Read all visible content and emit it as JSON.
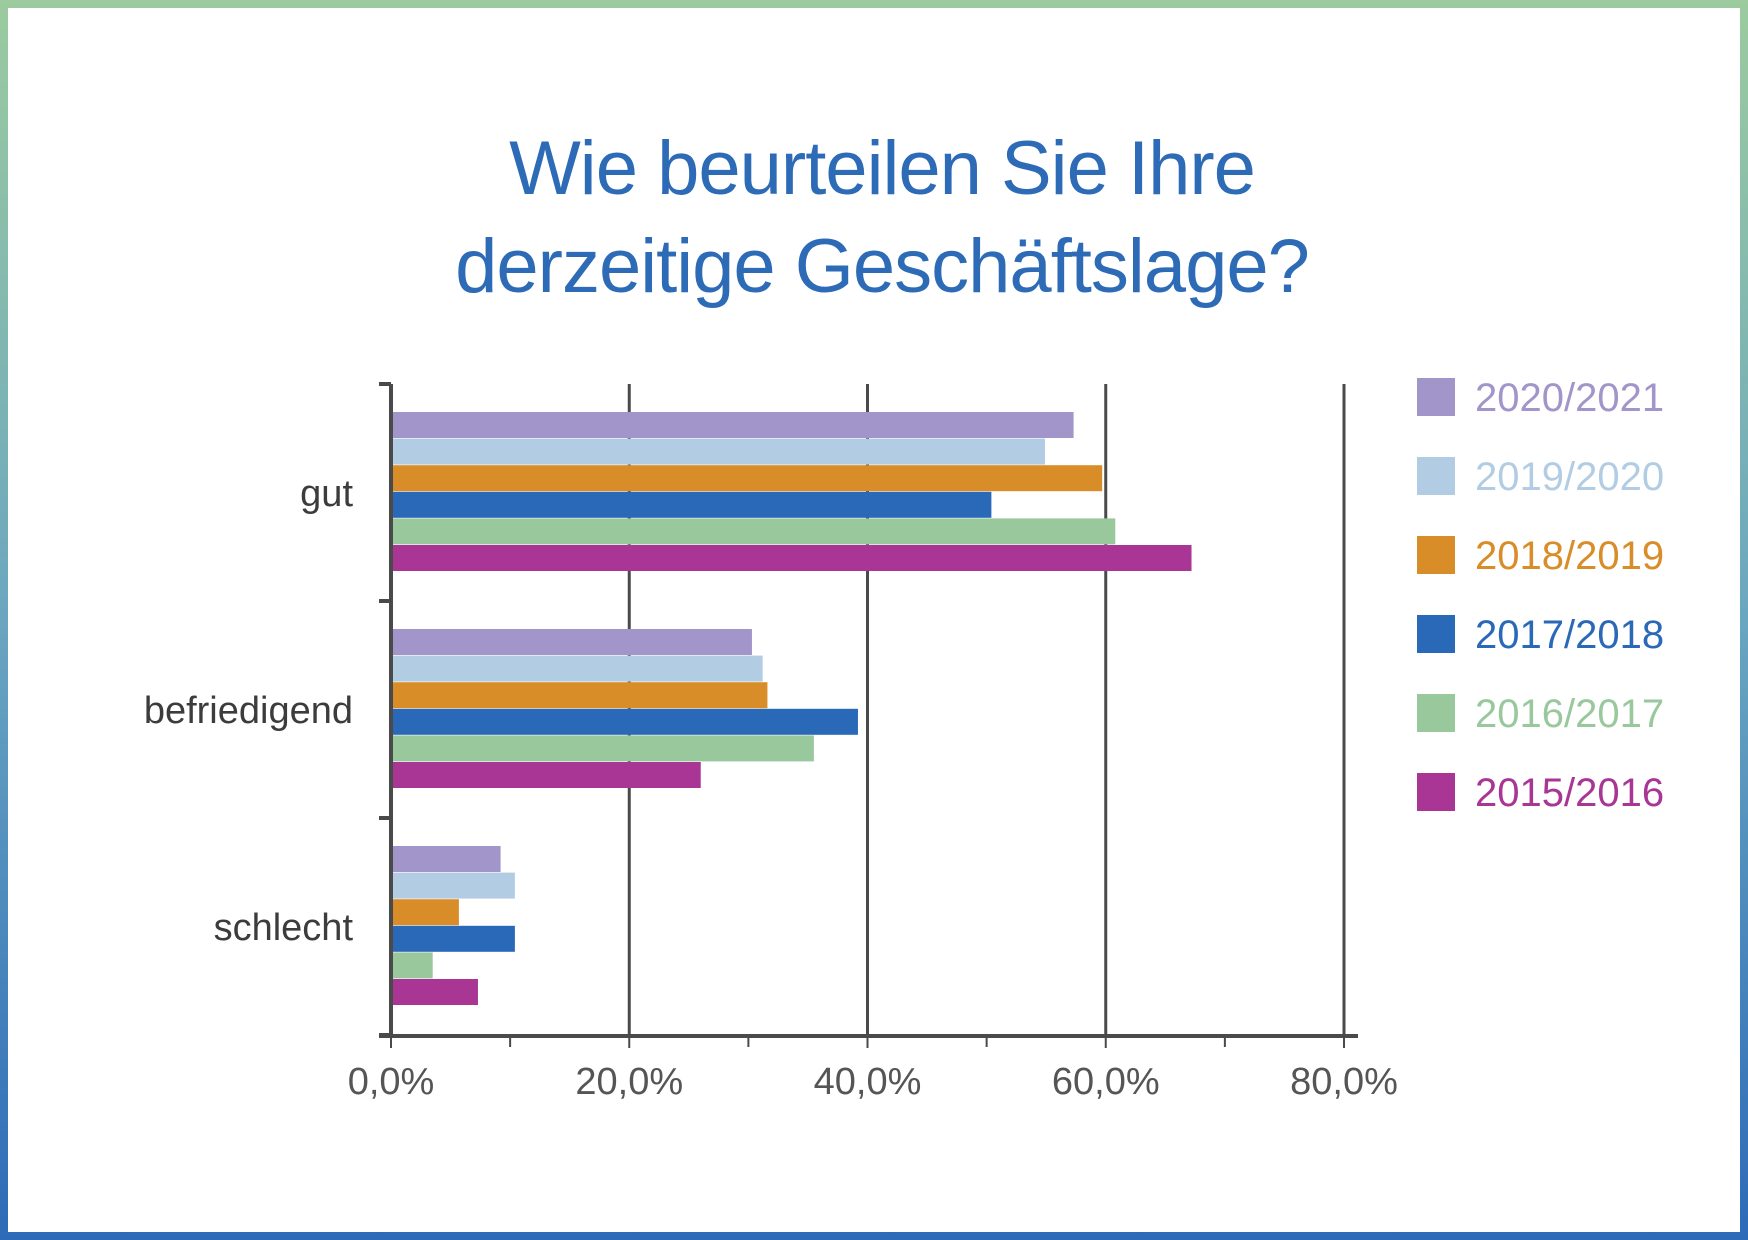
{
  "chart_data": {
    "type": "bar",
    "orientation": "horizontal",
    "title": "Wie beurteilen Sie Ihre derzeitige Geschäftslage?",
    "title_lines": [
      "Wie beurteilen Sie Ihre",
      "derzeitige Geschäftslage?"
    ],
    "categories": [
      "gut",
      "befriedigend",
      "schlecht"
    ],
    "xlim": [
      0,
      80
    ],
    "x_ticks": [
      0,
      20,
      40,
      60,
      80
    ],
    "x_tick_labels": [
      "0,0%",
      "20,0%",
      "40,0%",
      "60,0%",
      "80,0%"
    ],
    "grid": true,
    "legend_position": "right",
    "series": [
      {
        "name": "2020/2021",
        "color": "#a195c9",
        "values": [
          57.3,
          30.3,
          9.2
        ]
      },
      {
        "name": "2019/2020",
        "color": "#b2cde3",
        "values": [
          54.9,
          31.2,
          10.4
        ]
      },
      {
        "name": "2018/2019",
        "color": "#d98d28",
        "values": [
          59.7,
          31.6,
          5.7
        ]
      },
      {
        "name": "2017/2018",
        "color": "#2a69b8",
        "values": [
          50.4,
          39.2,
          10.4
        ]
      },
      {
        "name": "2016/2017",
        "color": "#9ac89d",
        "values": [
          60.8,
          35.5,
          3.5
        ]
      },
      {
        "name": "2015/2016",
        "color": "#a93594",
        "values": [
          67.2,
          26.0,
          7.3
        ]
      }
    ]
  }
}
